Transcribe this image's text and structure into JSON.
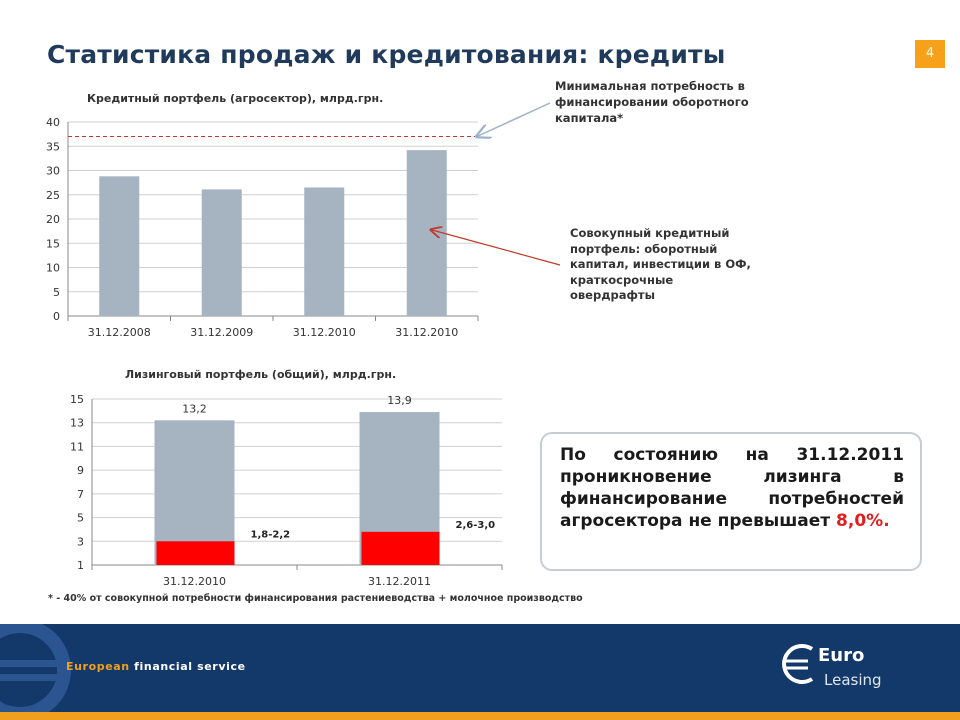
{
  "header": {
    "title": "Статистика продаж и кредитования: кредиты",
    "page_number": "4"
  },
  "charts": {
    "credit": {
      "title": "Кредитный портфель (агросектор), млрд.грн.",
      "annotation_min": "Минимальная потребность в финансировании оборотного капитала*",
      "annotation_total": "Совокупный кредитный портфель: оборотный капитал, инвестиции в ОФ, краткосрочные овердрафты"
    },
    "leasing": {
      "title": "Лизинговый портфель (общий), млрд.грн."
    }
  },
  "chart_data": [
    {
      "type": "bar",
      "title": "Кредитный портфель (агросектор), млрд.грн.",
      "categories": [
        "31.12.2008",
        "31.12.2009",
        "31.12.2010",
        "31.12.2010"
      ],
      "values": [
        28.8,
        26.1,
        26.5,
        34.2
      ],
      "reference_line": 37,
      "ylim": [
        0,
        40
      ],
      "yticks": [
        0,
        5,
        10,
        15,
        20,
        25,
        30,
        35,
        40
      ],
      "colors": {
        "bar": "#a6b3c1",
        "reference": "#c0392b"
      }
    },
    {
      "type": "bar",
      "title": "Лизинговый портфель (общий), млрд.грн.",
      "categories": [
        "31.12.2010",
        "31.12.2011"
      ],
      "series": [
        {
          "values": [
            13.2,
            13.9
          ],
          "labels": [
            "13,2",
            "13,9"
          ],
          "color": "#a6b3c1"
        },
        {
          "values": [
            2.0,
            2.8
          ],
          "labels": [
            "1,8-2,2",
            "2,6-3,0"
          ],
          "color": "#ff0000"
        }
      ],
      "ylim": [
        1,
        15
      ],
      "yticks": [
        1,
        3,
        5,
        7,
        9,
        11,
        13,
        15
      ]
    }
  ],
  "callout": {
    "text_before": "По состоянию на 31.12.2011 проникновение лизинга в финансирование потребностей агросектора не превышает ",
    "highlight": "8,0%."
  },
  "footnote": "* - 40% от совокупной потребности финансирования растениеводства + молочное производство",
  "footer": {
    "tagline_part1": "European",
    "tagline_part2": " financial service",
    "brand_word": "Euro",
    "brand_sub": "Leasing"
  }
}
